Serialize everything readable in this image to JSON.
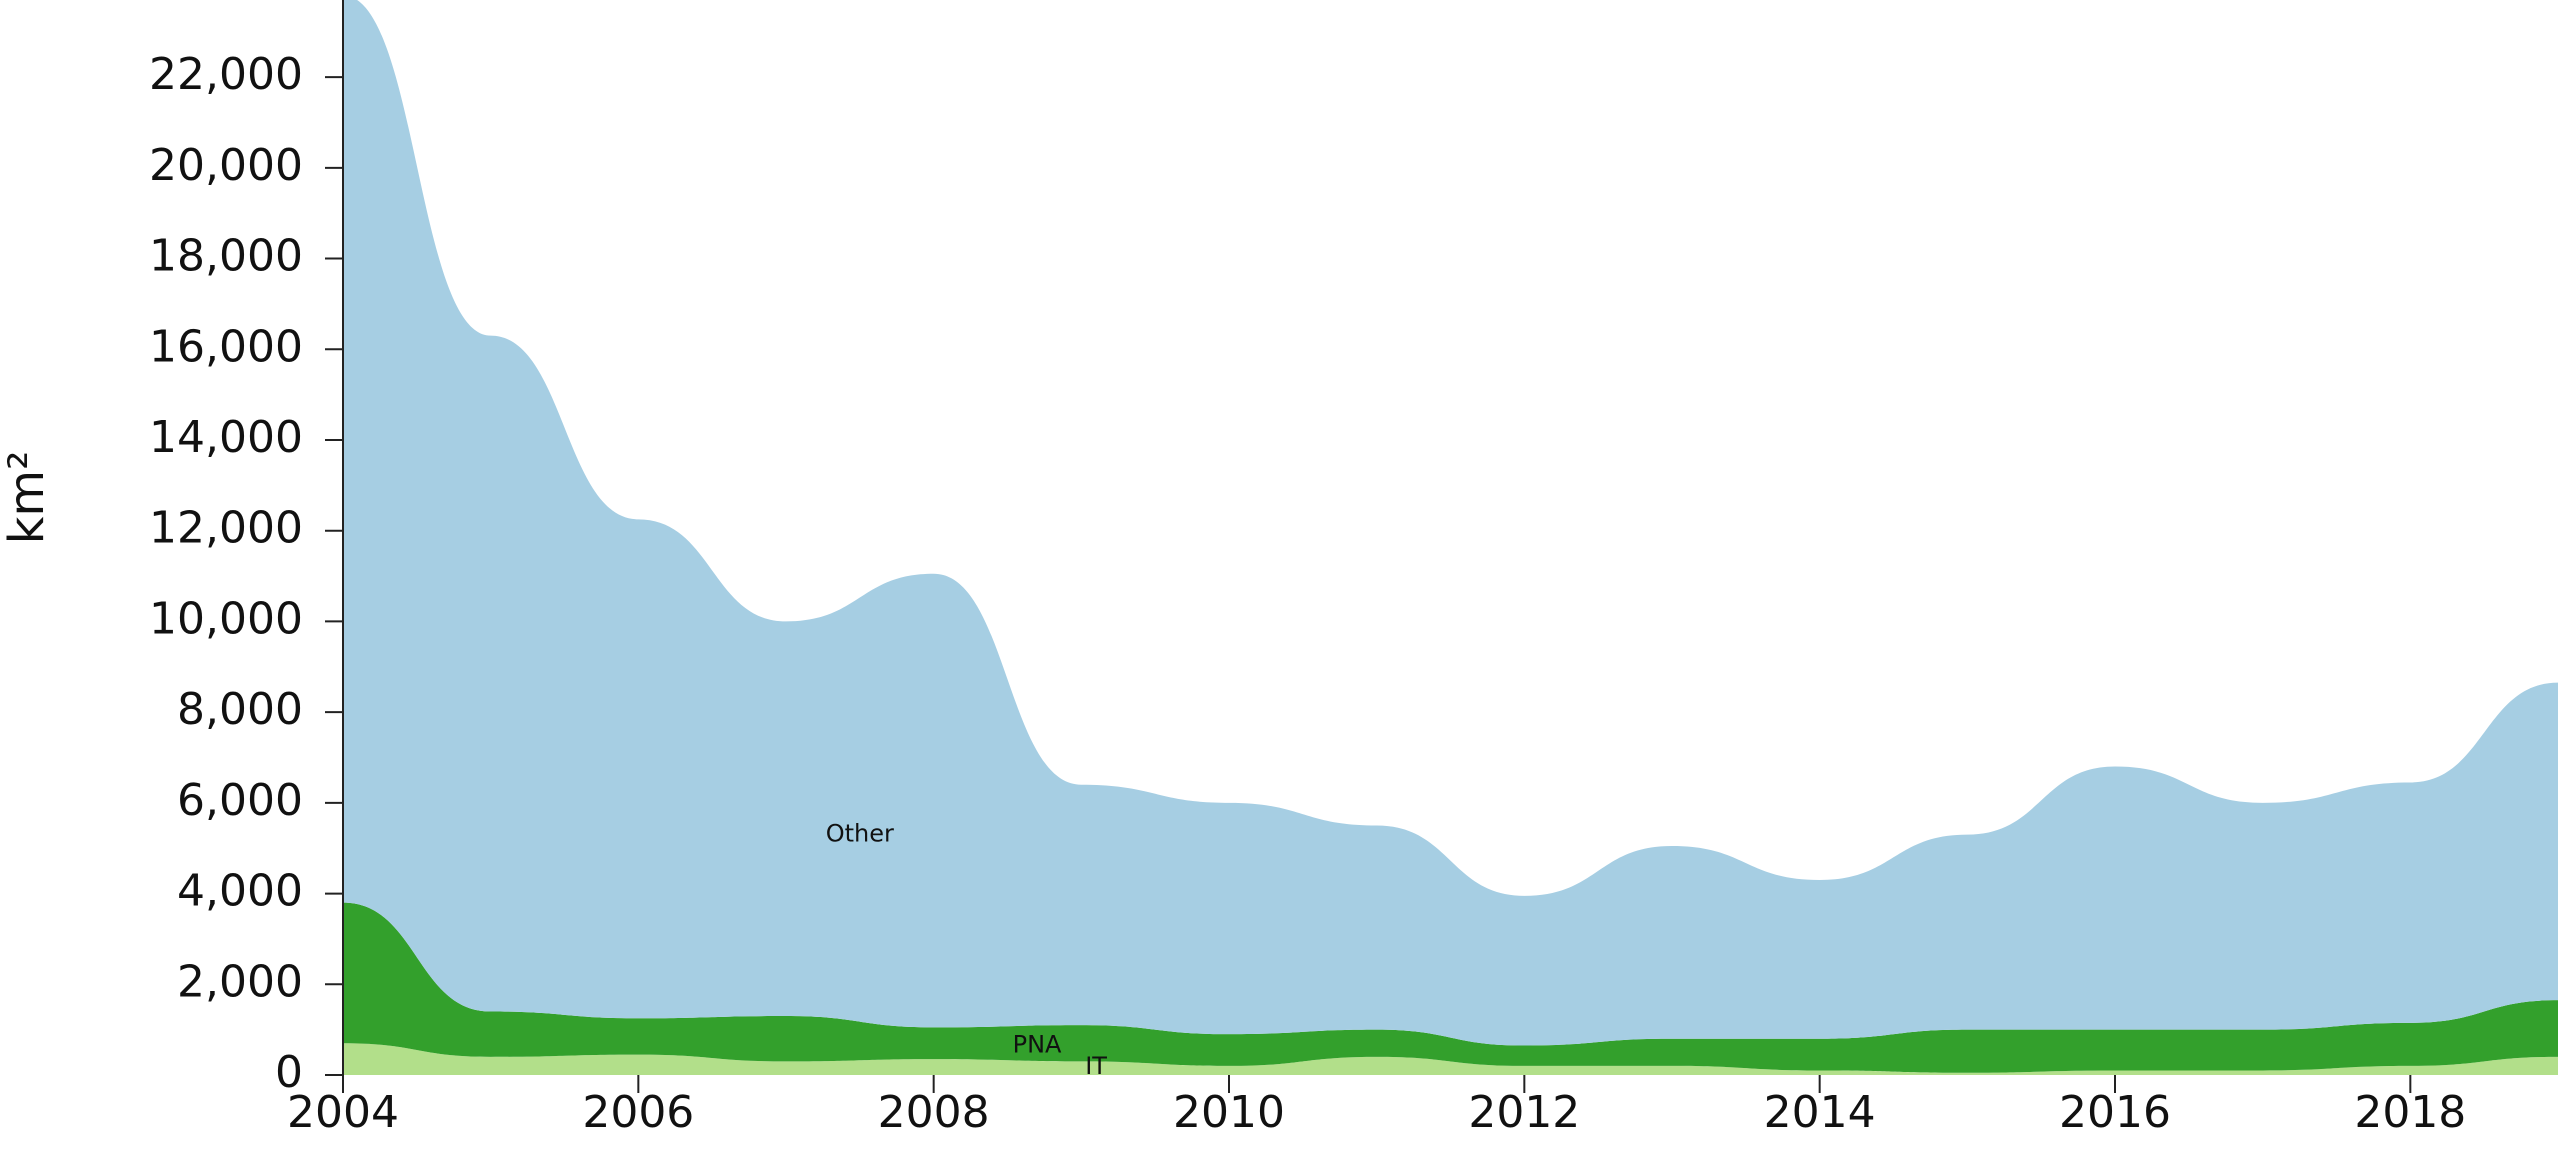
{
  "chart_data": {
    "type": "area",
    "stacked": true,
    "x": [
      2004,
      2005,
      2006,
      2007,
      2008,
      2009,
      2010,
      2011,
      2012,
      2013,
      2014,
      2015,
      2016,
      2017,
      2018,
      2019
    ],
    "xlim": [
      2004,
      2019
    ],
    "ylim": [
      0,
      23700
    ],
    "xticks": [
      2004,
      2006,
      2008,
      2010,
      2012,
      2014,
      2016,
      2018
    ],
    "xtick_labels": [
      "2004",
      "2006",
      "2008",
      "2010",
      "2012",
      "2014",
      "2016",
      "2018"
    ],
    "yticks": [
      0,
      2000,
      4000,
      6000,
      8000,
      10000,
      12000,
      14000,
      16000,
      18000,
      20000,
      22000
    ],
    "ytick_labels": [
      "0",
      "2,000",
      "4,000",
      "6,000",
      "8,000",
      "10,000",
      "12,000",
      "14,000",
      "16,000",
      "18,000",
      "20,000",
      "22,000"
    ],
    "ylabel": "km²",
    "xlabel": "",
    "title": "",
    "grid": false,
    "series": [
      {
        "name": "IT",
        "color": "#b2df8a",
        "values": [
          700,
          400,
          450,
          300,
          350,
          300,
          200,
          400,
          200,
          200,
          100,
          50,
          100,
          100,
          200,
          400
        ]
      },
      {
        "name": "PNA",
        "color": "#33a02c",
        "values": [
          3100,
          1000,
          800,
          1000,
          700,
          800,
          700,
          600,
          450,
          600,
          700,
          950,
          900,
          900,
          950,
          1250
        ]
      },
      {
        "name": "Other",
        "color": "#a6cee3",
        "values": [
          20000,
          14900,
          11000,
          8700,
          10000,
          5300,
          5100,
          4500,
          3300,
          4250,
          3500,
          4300,
          5800,
          5000,
          5300,
          7000
        ]
      }
    ],
    "annotations": [
      {
        "text": "Other",
        "x": 2007.5,
        "y": 5300
      },
      {
        "text": "PNA",
        "x": 2008.7,
        "y": 650
      },
      {
        "text": "IT",
        "x": 2009.1,
        "y": 180
      }
    ]
  }
}
